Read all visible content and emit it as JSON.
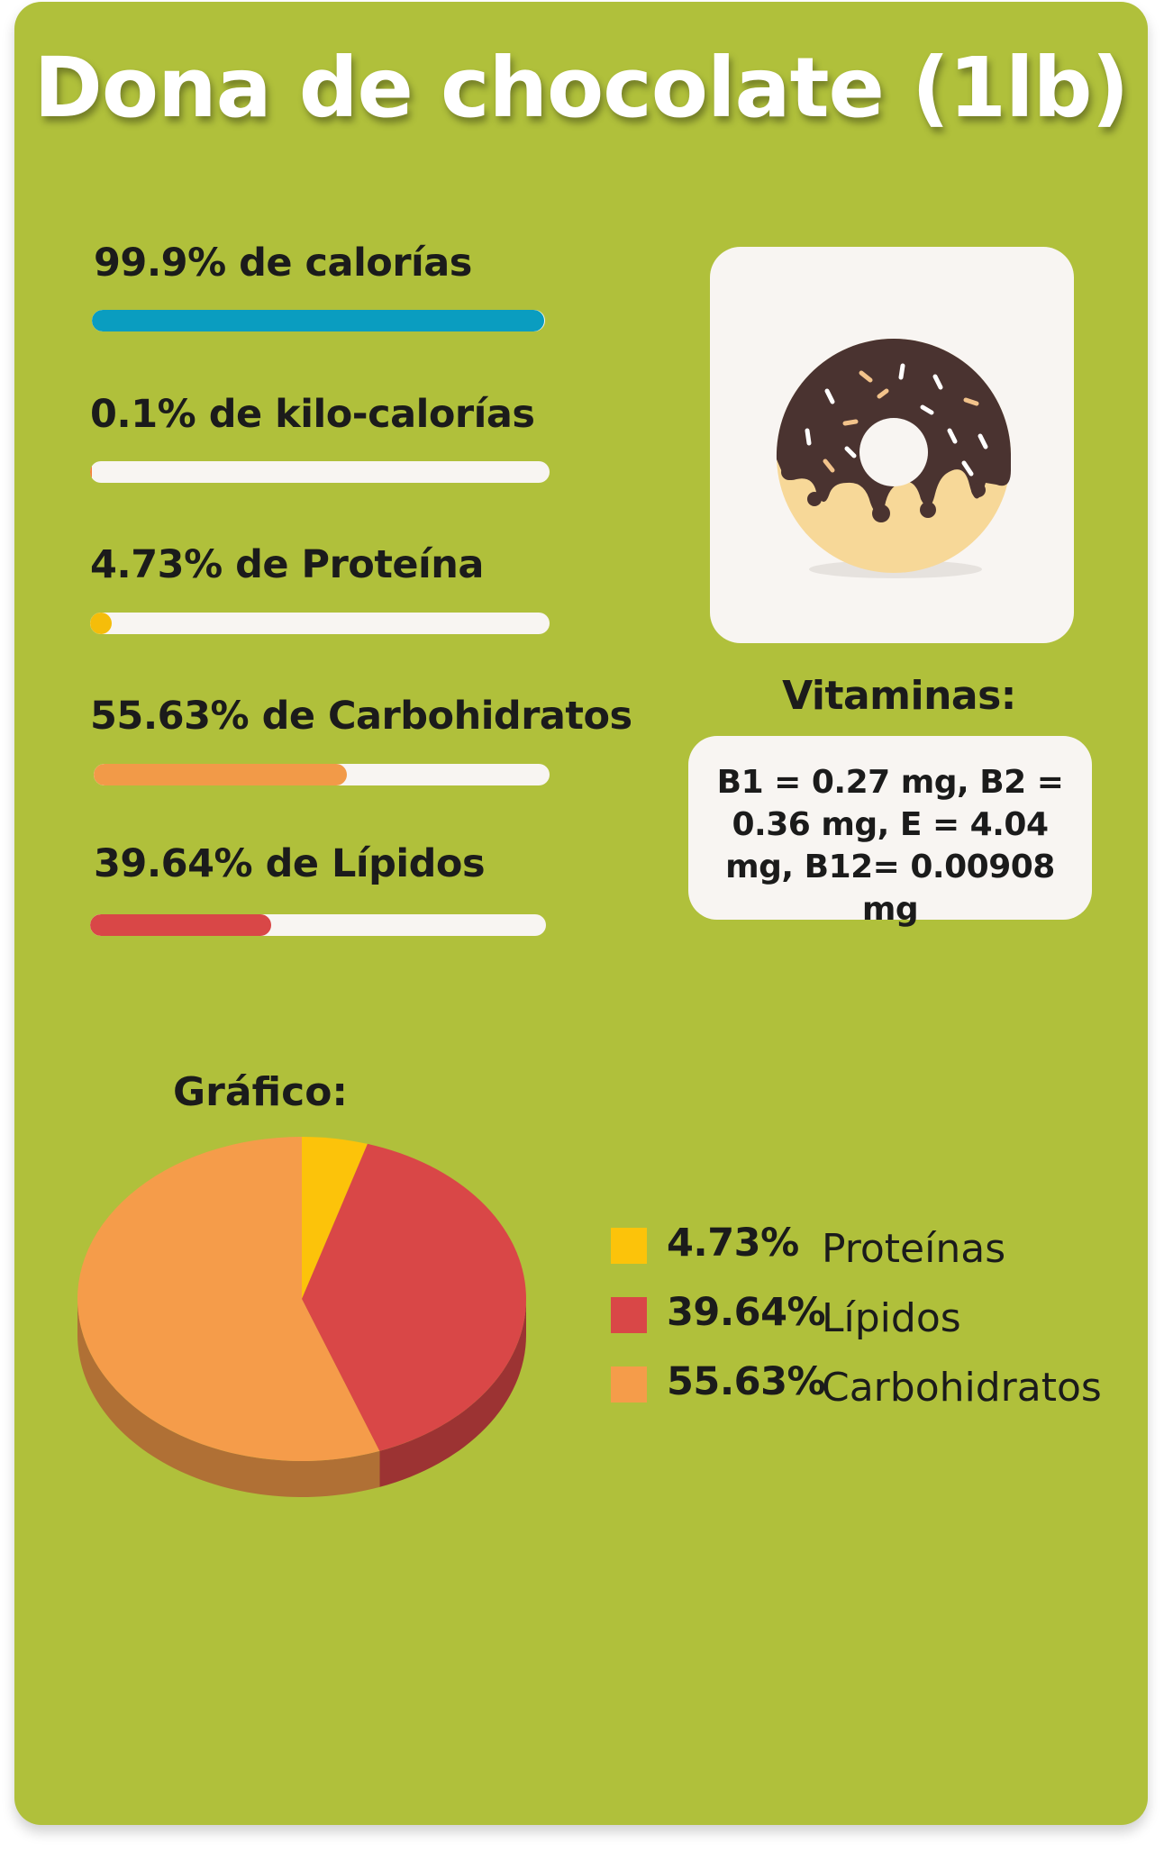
{
  "title": "Dona de chocolate (1lb)",
  "stats": [
    {
      "label": "99.9% de calorías",
      "percent": 99.9,
      "color": "#0a9dc0"
    },
    {
      "label": "0.1% de kilo-calorías",
      "percent": 0.1,
      "color": "#f2823a"
    },
    {
      "label": "4.73% de Proteína",
      "percent": 4.73,
      "color": "#f5bd0a"
    },
    {
      "label": "55.63% de Carbohidratos",
      "percent": 55.63,
      "color": "#f29a48"
    },
    {
      "label": "39.64% de Lípidos",
      "percent": 39.64,
      "color": "#d94747"
    }
  ],
  "image_icon": "chocolate-donut-icon",
  "vitamins": {
    "heading": "Vitaminas:",
    "text": "B1 = 0.27 mg, B2 = 0.36 mg, E = 4.04 mg, B12= 0.00908 mg"
  },
  "chart_data": {
    "type": "pie",
    "title": "Gráfico:",
    "slices": [
      {
        "label": "Proteínas",
        "value": 4.73,
        "value_label": "4.73%",
        "color": "#fcc30a"
      },
      {
        "label": "Lípidos",
        "value": 39.64,
        "value_label": "39.64%",
        "color": "#d94747"
      },
      {
        "label": "Carbohidratos",
        "value": 55.63,
        "value_label": "55.63%",
        "color": "#f59c4a"
      }
    ],
    "legend_position": "right"
  }
}
